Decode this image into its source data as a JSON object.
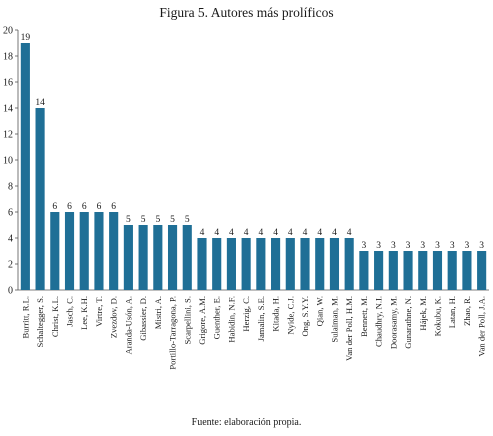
{
  "figure": {
    "title": "Figura 5. Autores más prolíficos",
    "source": "Fuente: elaboración propia."
  },
  "colors": {
    "bar": "#1f6f96",
    "axis": "#555555",
    "tick_text": "#222222"
  },
  "chart_data": {
    "type": "bar",
    "title": "Figura 5. Autores más prolíficos",
    "xlabel": "",
    "ylabel": "",
    "ylim": [
      0,
      20
    ],
    "yticks": [
      0,
      2,
      4,
      6,
      8,
      10,
      12,
      14,
      16,
      18,
      20
    ],
    "grid": false,
    "legend": "none",
    "data_labels": true,
    "categories": [
      "Burritt, R.L.",
      "Schaltegger, S.",
      "Christ, K.L.",
      "Jasch, C.",
      "Lee, K.H.",
      "Virtre, T.",
      "Zvezdov, D.",
      "Aranda-Usón, A.",
      "Gibassier, D.",
      "Mistri, A.",
      "Portillo-Tarragona, P.",
      "Scarpellini, S.",
      "Grigore, A.M.",
      "Guenther, E.",
      "Habidin, N.F.",
      "Herzig, C.",
      "Jamalin, S.E.",
      "Kitada, H.",
      "Nyide, C.J.",
      "Ong, S.Y.Y.",
      "Qian, W.",
      "Sulaiman, M.",
      "Van der Poll, H.M.",
      "Bennett, M.",
      "Chaudhry, N.I.",
      "Doorasamy, M.",
      "Gunarathne, N.",
      "Hájek, M.",
      "Kokubu, K.",
      "Latan, H.",
      "Zhao, R.",
      "Van der Poll, J.A."
    ],
    "values": [
      19,
      14,
      6,
      6,
      6,
      6,
      6,
      5,
      5,
      5,
      5,
      5,
      4,
      4,
      4,
      4,
      4,
      4,
      4,
      4,
      4,
      4,
      4,
      3,
      3,
      3,
      3,
      3,
      3,
      3,
      3,
      3
    ]
  }
}
